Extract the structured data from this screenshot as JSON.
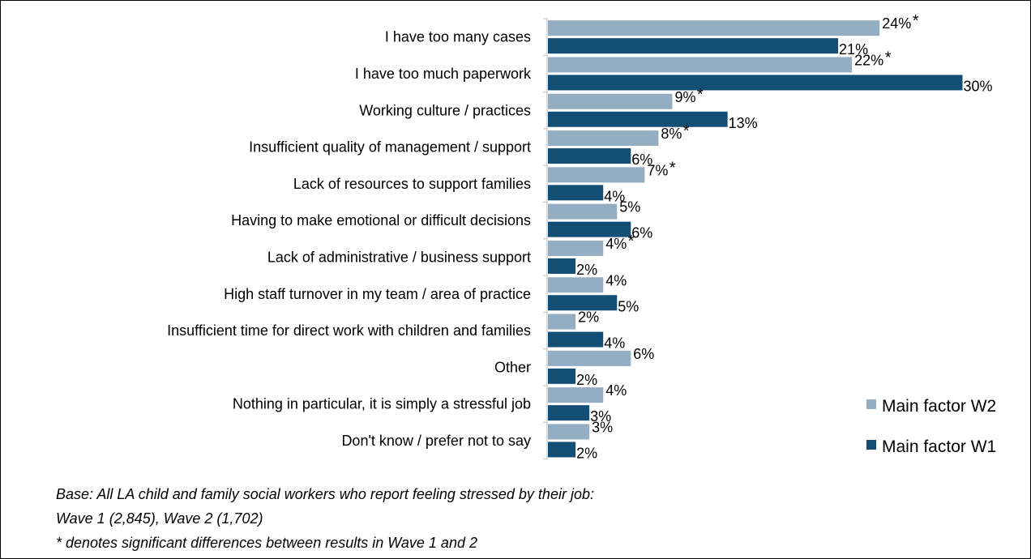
{
  "chart_data": {
    "type": "bar",
    "orientation": "horizontal",
    "categories": [
      "I have too many cases",
      "I have too much paperwork",
      "Working culture / practices",
      "Insufficient quality of management / support",
      "Lack of resources to support families",
      "Having to make emotional or difficult decisions",
      "Lack of administrative / business support",
      "High staff turnover in my team / area of practice",
      "Insufficient time for direct work with children and families",
      "Other",
      "Nothing in particular, it is simply a stressful job",
      "Don't know / prefer not to say"
    ],
    "series": [
      {
        "name": "Main factor W2",
        "color": "#93adc2",
        "values": [
          24,
          22,
          9,
          8,
          7,
          5,
          4,
          4,
          2,
          6,
          4,
          3
        ],
        "labels": [
          "24%",
          "22%",
          "9%",
          "8%",
          "7%",
          "5%",
          "4%",
          "4%",
          "2%",
          "6%",
          "4%",
          "3%"
        ]
      },
      {
        "name": "Main factor W1",
        "color": "#134f74",
        "values": [
          21,
          30,
          13,
          6,
          4,
          6,
          2,
          5,
          4,
          2,
          3,
          2
        ],
        "labels": [
          "21%",
          "30%",
          "13%",
          "6%",
          "4%",
          "6%",
          "2%",
          "5%",
          "4%",
          "2%",
          "3%",
          "2%"
        ]
      }
    ],
    "significant": [
      true,
      true,
      true,
      true,
      true,
      false,
      true,
      false,
      false,
      false,
      false,
      false
    ],
    "significance_marker": "*",
    "xlim": [
      0,
      30
    ],
    "grid": false,
    "legend_position": "right"
  },
  "notes": {
    "base_line1": "Base: All LA child and family social workers who report feeling stressed by their job:",
    "base_line2": "Wave 1 (2,845), Wave 2 (1,702)",
    "significance_note": "* denotes significant differences between results in Wave 1 and 2"
  }
}
